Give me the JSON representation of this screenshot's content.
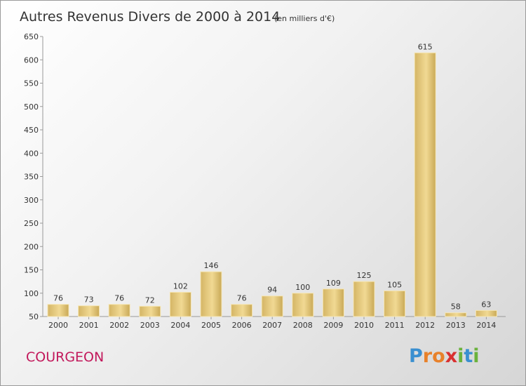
{
  "chart_data": {
    "type": "bar",
    "title": "Autres Revenus Divers de 2000 à 2014",
    "subtitle": "(en milliers d'€)",
    "categories": [
      "2000",
      "2001",
      "2002",
      "2003",
      "2004",
      "2005",
      "2006",
      "2007",
      "2008",
      "2009",
      "2010",
      "2011",
      "2012",
      "2013",
      "2014"
    ],
    "values": [
      76,
      73,
      76,
      72,
      102,
      146,
      76,
      94,
      100,
      109,
      125,
      105,
      615,
      58,
      63
    ],
    "ylim": [
      50,
      650
    ],
    "yticks": [
      50,
      100,
      150,
      200,
      250,
      300,
      350,
      400,
      450,
      500,
      550,
      600,
      650
    ],
    "grid": false,
    "bar_color": "#e6c77a"
  },
  "commune": "COURGEON",
  "logo": {
    "letters": [
      "P",
      "r",
      "o",
      "x",
      "i",
      "t",
      "i"
    ],
    "colors": [
      "#3a8fd0",
      "#e8812a",
      "#e8812a",
      "#d93030",
      "#6ab23c",
      "#3a8fd0",
      "#6ab23c"
    ]
  }
}
